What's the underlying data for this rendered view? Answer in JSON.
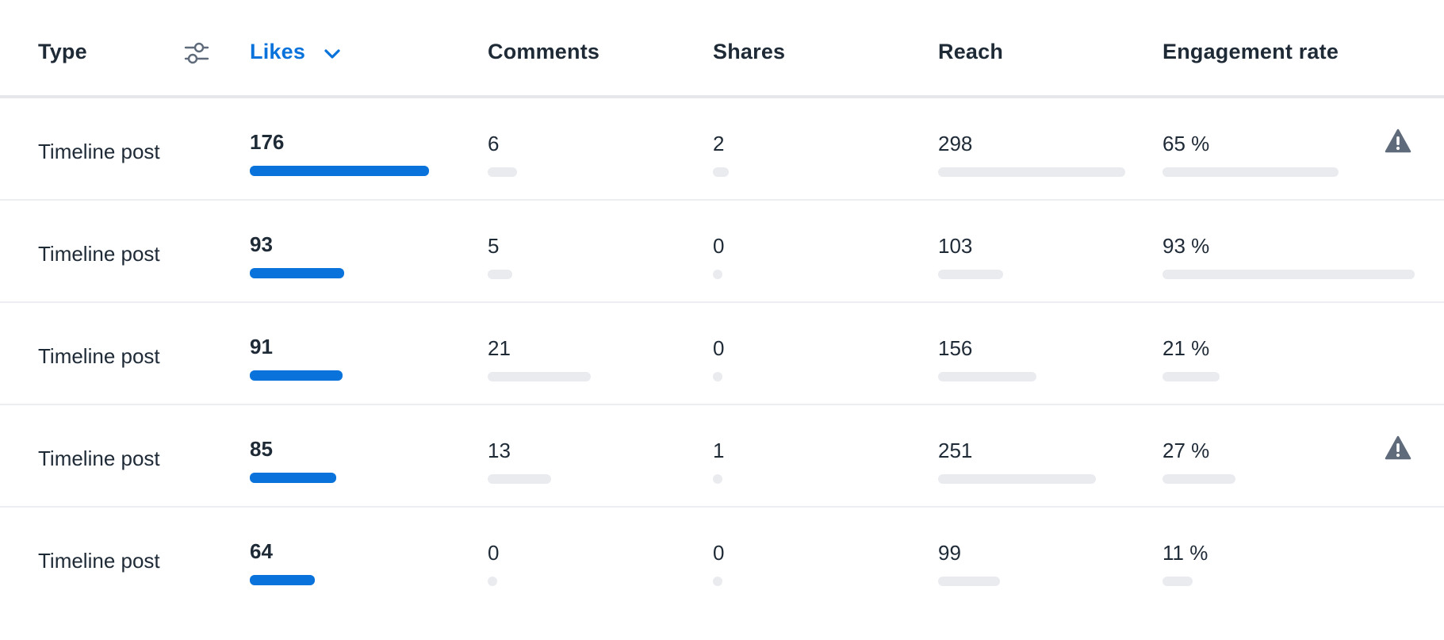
{
  "header": {
    "type": "Type",
    "likes": "Likes",
    "comments": "Comments",
    "shares": "Shares",
    "reach": "Reach",
    "engagement": "Engagement rate",
    "filter_icon": "sliders-icon",
    "sort_icon": "chevron-down-icon"
  },
  "colors": {
    "accent": "#0a73db",
    "bar_track": "#e9ebef",
    "text": "#1f2a37",
    "warning_icon": "#5f6b7a"
  },
  "max": {
    "likes": 176,
    "comments": 21,
    "shares": 2,
    "reach": 298,
    "engagement": 93
  },
  "rows": [
    {
      "type": "Timeline post",
      "likes": "176",
      "comments": "6",
      "shares": "2",
      "reach": "298",
      "engagement": "65 %",
      "warning": true
    },
    {
      "type": "Timeline post",
      "likes": "93",
      "comments": "5",
      "shares": "0",
      "reach": "103",
      "engagement": "93 %",
      "warning": false
    },
    {
      "type": "Timeline post",
      "likes": "91",
      "comments": "21",
      "shares": "0",
      "reach": "156",
      "engagement": "21 %",
      "warning": false
    },
    {
      "type": "Timeline post",
      "likes": "85",
      "comments": "13",
      "shares": "1",
      "reach": "251",
      "engagement": "27 %",
      "warning": true
    },
    {
      "type": "Timeline post",
      "likes": "64",
      "comments": "0",
      "shares": "0",
      "reach": "99",
      "engagement": "11 %",
      "warning": false
    }
  ]
}
